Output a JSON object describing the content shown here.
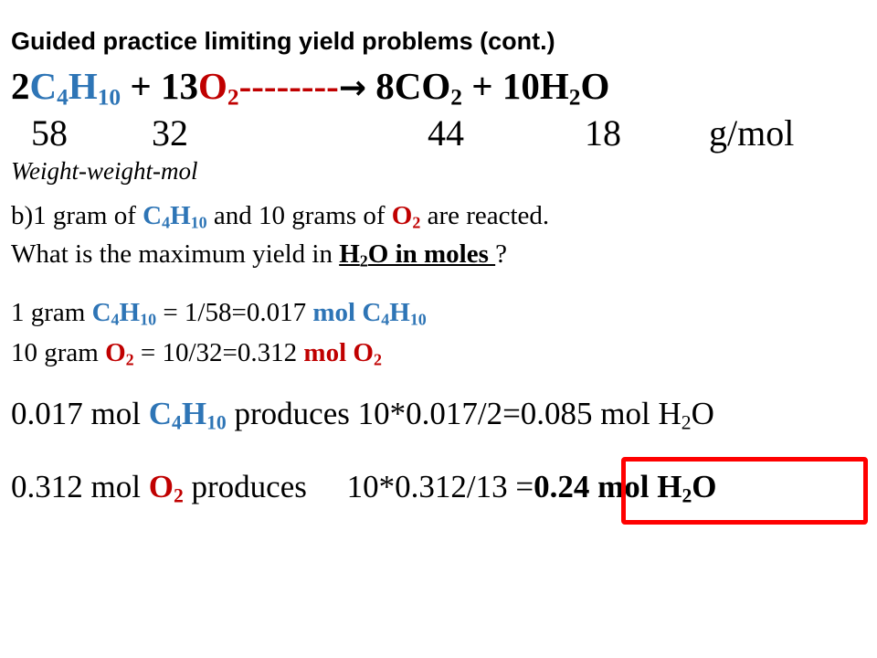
{
  "title": "Guided practice limiting yield problems (cont.)",
  "equation": {
    "coef_butane": "2",
    "butane_C": "C",
    "butane_C_sub": "4",
    "butane_H": "H",
    "butane_H_sub": "10",
    "plus1": " + 13",
    "oxygen": "O",
    "oxygen_sub": "2",
    "dashes": "--------",
    "arrow": "→",
    "products": " 8CO",
    "co2_sub": "2",
    "plus2": " + 10H",
    "h2o_sub": "2",
    "h2o_O": "O"
  },
  "molar_masses": {
    "butane": "58",
    "oxygen": "32",
    "co2": "44",
    "water": "18",
    "unit": "g/mol"
  },
  "subtitle": "Weight-weight-mol",
  "question": {
    "line1_a": "b)1 gram of ",
    "c": "C",
    "c_sub": "4",
    "h": "H",
    "h_sub": "10",
    "line1_b": " and 10 grams of ",
    "o": "O",
    "o_sub": "2",
    "line1_c": " are reacted.",
    "line2_a": "What is the maximum yield in ",
    "h2o_h": "H",
    "h2o_sub": "2",
    "h2o_rest": "O in moles ",
    "line2_b": "?"
  },
  "calc1": {
    "prefix": "1 gram ",
    "c": "C",
    "c_sub": "4",
    "h": "H",
    "h_sub": "10",
    "mid": " = 1/58=0.017 ",
    "mol": "mol ",
    "c2": "C",
    "c2_sub": "4",
    "h2": "H",
    "h2_sub": "10"
  },
  "calc2": {
    "prefix": "10 gram ",
    "o": "O",
    "o_sub": "2",
    "mid": " =  10/32=0.312 ",
    "mol": "mol ",
    "o2": "O",
    "o2_sub": "2"
  },
  "prod1": {
    "prefix": "0.017 mol ",
    "c": "C",
    "c_sub": "4",
    "h": "H",
    "h_sub": "10",
    "mid": " produces 10*0.017/2=0.085 mol H",
    "h2o_sub": "2",
    "end": "O"
  },
  "prod2": {
    "prefix": "0.312 mol ",
    "o": "O",
    "o_sub": "2",
    "mid": " produces     10*0.312/13 =",
    "answer": "0.24 mol H",
    "answer_sub": "2",
    "answer_end": "O"
  },
  "colors": {
    "blue": "#2e75b6",
    "red": "#c00000",
    "box": "#ff0000"
  }
}
